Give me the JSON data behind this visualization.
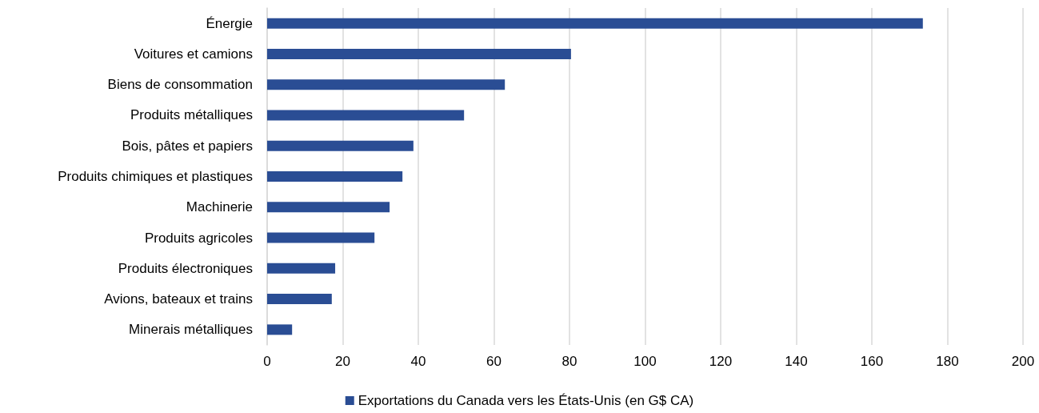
{
  "chart_data": {
    "type": "bar",
    "orientation": "horizontal",
    "categories": [
      "Énergie",
      "Voitures et camions",
      "Biens de consommation",
      "Produits métalliques",
      "Bois, pâtes et papiers",
      "Produits chimiques et plastiques",
      "Machinerie",
      "Produits agricoles",
      "Produits électroniques",
      "Avions, bateaux et trains",
      "Minerais métalliques"
    ],
    "series": [
      {
        "name": "Exportations du Canada vers les États-Unis (en G$ CA)",
        "color": "#2a4d94",
        "values": [
          173.5,
          80.4,
          62.9,
          52.1,
          38.7,
          35.8,
          32.4,
          28.4,
          18.0,
          17.1,
          6.6
        ]
      }
    ],
    "xlim": [
      0,
      200
    ],
    "xticks": [
      0,
      20,
      40,
      60,
      80,
      100,
      120,
      140,
      160,
      180,
      200
    ],
    "grid": "x",
    "legend": "bottom"
  }
}
